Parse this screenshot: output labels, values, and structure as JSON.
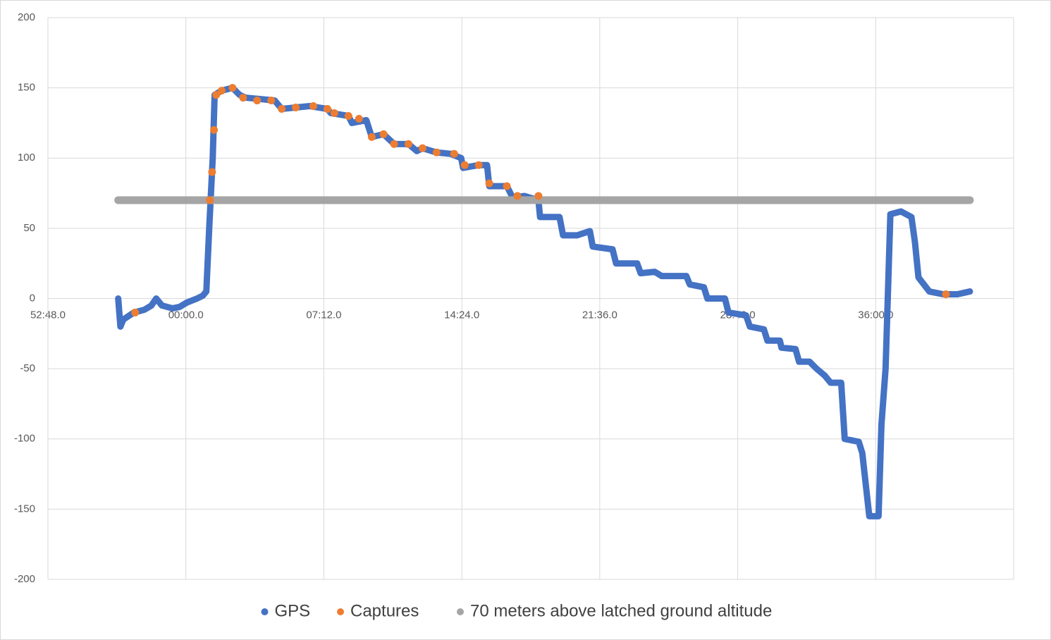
{
  "chart_data": {
    "type": "scatter",
    "xlim": [
      -432,
      2592
    ],
    "xticks": [
      {
        "value": -432,
        "label": "52:48.0"
      },
      {
        "value": 0,
        "label": "00:00.0"
      },
      {
        "value": 432,
        "label": "07:12.0"
      },
      {
        "value": 864,
        "label": "14:24.0"
      },
      {
        "value": 1296,
        "label": "21:36.0"
      },
      {
        "value": 1728,
        "label": "28:48.0"
      },
      {
        "value": 2160,
        "label": "36:00.0"
      }
    ],
    "ylim": [
      -200,
      200
    ],
    "yticks": [
      -200,
      -150,
      -100,
      -50,
      0,
      50,
      100,
      150,
      200
    ],
    "grid": true,
    "legend": "bottom",
    "series": [
      {
        "name": "GPS",
        "color": "#4472c4",
        "style": "line",
        "x": [
          -212,
          -205,
          -196,
          -163,
          -130,
          -108,
          -93,
          -75,
          -42,
          -20,
          2,
          35,
          53,
          64,
          73,
          84,
          90,
          112,
          146,
          168,
          187,
          234,
          278,
          300,
          344,
          388,
          443,
          454,
          509,
          520,
          565,
          582,
          619,
          652,
          697,
          723,
          741,
          785,
          829,
          862,
          868,
          917,
          943,
          950,
          1005,
          1023,
          1060,
          1104,
          1109,
          1170,
          1181,
          1225,
          1265,
          1274,
          1336,
          1347,
          1413,
          1424,
          1468,
          1490,
          1567,
          1578,
          1622,
          1633,
          1688,
          1699,
          1754,
          1766,
          1810,
          1821,
          1860,
          1865,
          1909,
          1920,
          1953,
          1975,
          2001,
          2019,
          2052,
          2063,
          2107,
          2118,
          2140,
          2169,
          2178,
          2191,
          2206,
          2239,
          2272,
          2283,
          2294,
          2328,
          2372,
          2416,
          2455
        ],
        "values": [
          0,
          -20,
          -15,
          -10,
          -8,
          -5,
          0,
          -5,
          -7,
          -6,
          -3,
          0,
          2,
          5,
          50,
          100,
          145,
          148,
          150,
          145,
          143,
          142,
          141,
          135,
          136,
          137,
          135,
          132,
          130,
          125,
          127,
          115,
          117,
          110,
          110,
          105,
          107,
          104,
          103,
          100,
          93,
          95,
          95,
          80,
          80,
          72,
          73,
          70,
          58,
          58,
          45,
          45,
          48,
          37,
          35,
          25,
          25,
          18,
          19,
          16,
          16,
          10,
          8,
          0,
          0,
          -10,
          -12,
          -20,
          -22,
          -30,
          -30,
          -35,
          -36,
          -45,
          -45,
          -50,
          -55,
          -60,
          -60,
          -100,
          -102,
          -110,
          -155,
          -155,
          -90,
          -50,
          60,
          62,
          58,
          40,
          15,
          5,
          3,
          3,
          5
        ]
      },
      {
        "name": "Captures",
        "color": "#ed7d31",
        "style": "markers",
        "x": [
          -159,
          75,
          82,
          88,
          95,
          112,
          146,
          179,
          223,
          267,
          300,
          344,
          399,
          443,
          465,
          509,
          542,
          582,
          619,
          652,
          697,
          741,
          785,
          840,
          873,
          917,
          950,
          1005,
          1038,
          1104,
          2380
        ],
        "values": [
          -10,
          70,
          90,
          120,
          145,
          148,
          150,
          143,
          141,
          141,
          135,
          136,
          137,
          135,
          132,
          130,
          128,
          115,
          117,
          110,
          110,
          107,
          104,
          103,
          95,
          95,
          82,
          80,
          73,
          73,
          3
        ]
      },
      {
        "name": "70 meters above latched ground altitude",
        "color": "#a5a5a5",
        "style": "line",
        "x": [
          -212,
          2455
        ],
        "values": [
          70,
          70
        ]
      }
    ]
  }
}
